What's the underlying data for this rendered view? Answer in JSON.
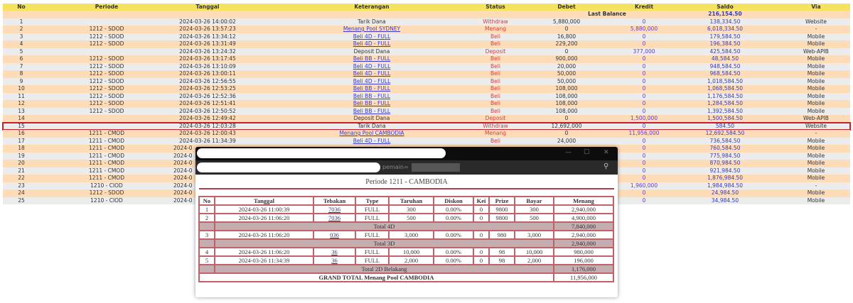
{
  "main": {
    "headers": [
      "No",
      "Periode",
      "Tanggal",
      "Keterangan",
      "Status",
      "Debet",
      "Kredit",
      "Saldo",
      "Via"
    ],
    "last_balance_label": "Last Balance",
    "last_balance": "216,154.50",
    "highlighted_row": 15,
    "rows": [
      [
        "1",
        "",
        "2024-03-26 14:00:02",
        "Tarik Dana",
        "Withdraw",
        "5,880,000",
        "0",
        "138,334.50",
        "Website"
      ],
      [
        "2",
        "1212 - SDOD",
        "2024-03-26 13:57:23",
        "Menang Pool SYDNEY",
        "Menang",
        "0",
        "5,880,000",
        "6,018,334.50",
        "-"
      ],
      [
        "3",
        "1212 - SDOD",
        "2024-03-26 13:34:12",
        "Beli 4D - FULL",
        "Beli",
        "16,800",
        "0",
        "179,584.50",
        "Mobile"
      ],
      [
        "4",
        "1212 - SDOD",
        "2024-03-26 13:31:49",
        "Beli 4D - FULL",
        "Beli",
        "229,200",
        "0",
        "196,384.50",
        "Mobile"
      ],
      [
        "5",
        "",
        "2024-03-26 13:24:32",
        "Deposit Dana",
        "Deposit",
        "0",
        "377,000",
        "425,584.50",
        "Web-APIB"
      ],
      [
        "6",
        "1212 - SDOD",
        "2024-03-26 13:17:45",
        "Beli BB - FULL",
        "Beli",
        "900,000",
        "0",
        "48,584.50",
        "Mobile"
      ],
      [
        "7",
        "1212 - SDOD",
        "2024-03-26 13:10:09",
        "Beli 4D - FULL",
        "Beli",
        "20,000",
        "0",
        "948,584.50",
        "Mobile"
      ],
      [
        "8",
        "1212 - SDOD",
        "2024-03-26 13:00:11",
        "Beli 4D - FULL",
        "Beli",
        "50,000",
        "0",
        "968,584.50",
        "Mobile"
      ],
      [
        "9",
        "1212 - SDOD",
        "2024-03-26 12:56:55",
        "Beli 4D - FULL",
        "Beli",
        "50,000",
        "0",
        "1,018,584.50",
        "Mobile"
      ],
      [
        "10",
        "1212 - SDOD",
        "2024-03-26 12:53:25",
        "Beli BB - FULL",
        "Beli",
        "108,000",
        "0",
        "1,068,584.50",
        "Mobile"
      ],
      [
        "11",
        "1212 - SDOD",
        "2024-03-26 12:52:36",
        "Beli BB - FULL",
        "Beli",
        "108,000",
        "0",
        "1,176,584.50",
        "Mobile"
      ],
      [
        "12",
        "1212 - SDOD",
        "2024-03-26 12:51:41",
        "Beli BB - FULL",
        "Beli",
        "108,000",
        "0",
        "1,284,584.50",
        "Mobile"
      ],
      [
        "13",
        "1212 - SDOD",
        "2024-03-26 12:50:52",
        "Beli BB - FULL",
        "Beli",
        "108,000",
        "0",
        "1,392,584.50",
        "Mobile"
      ],
      [
        "14",
        "",
        "2024-03-26 12:49:42",
        "Deposit Dana",
        "Deposit",
        "0",
        "1,500,000",
        "1,500,584.50",
        "Web-APIB"
      ],
      [
        "15",
        "",
        "2024-03-26 12:03:28",
        "Tarik Dana",
        "Withdraw",
        "12,692,000",
        "0",
        "584.50",
        "Website"
      ],
      [
        "16",
        "1211 - CMOD",
        "2024-03-26 12:00:43",
        "Menang Pool CAMBODIA",
        "Menang",
        "0",
        "11,956,000",
        "12,692,584.50",
        "-"
      ],
      [
        "17",
        "1211 - CMOD",
        "2024-03-26 11:34:39",
        "Beli 4D - FULL",
        "Beli",
        "24,000",
        "0",
        "736,584.50",
        "Mobile"
      ],
      [
        "18",
        "1211 - CMOD",
        "2024-0",
        "",
        "",
        "",
        "0",
        "760,584.50",
        "Mobile"
      ],
      [
        "19",
        "1211 - CMOD",
        "2024-0",
        "",
        "",
        "",
        "0",
        "775,984.50",
        "Mobile"
      ],
      [
        "20",
        "1211 - CMOD",
        "2024-0",
        "",
        "",
        "",
        "0",
        "870,984.50",
        "Mobile"
      ],
      [
        "21",
        "1211 - CMOD",
        "2024-0",
        "",
        "",
        "",
        "0",
        "921,984.50",
        "Mobile"
      ],
      [
        "22",
        "1211 - CMOD",
        "2024-0",
        "",
        "",
        "",
        "0",
        "1,876,984.50",
        "Mobile"
      ],
      [
        "23",
        "1210 - CIOD",
        "2024-0",
        "",
        "",
        "",
        "1,960,000",
        "1,984,984.50",
        "-"
      ],
      [
        "24",
        "1212 - SDOD",
        "2024-0",
        "",
        "",
        "",
        "0",
        "24,984.50",
        "Mobile"
      ],
      [
        "25",
        "1210 - CIOD",
        "2024-0",
        "",
        "",
        "",
        "0",
        "34,984.50",
        "Mobile"
      ]
    ]
  },
  "popup": {
    "address_text": "pemain=",
    "title": "Periode 1211 - CAMBODIA",
    "headers": [
      "No",
      "Tanggal",
      "Tebakan",
      "Type",
      "Taruhan",
      "Diskon",
      "Kei",
      "Prize",
      "Bayar",
      "Menang"
    ],
    "rows": [
      {
        "cells": [
          "1",
          "2024-03-26 11:00:39",
          "7036",
          "FULL",
          "300",
          "0.00%",
          "0",
          "9800",
          "300",
          "2,940,000"
        ]
      },
      {
        "cells": [
          "2",
          "2024-03-26 11:06:20",
          "7036",
          "FULL",
          "500",
          "0.00%",
          "0",
          "9800",
          "500",
          "4,900,000"
        ]
      },
      {
        "total": "Total 4D",
        "value": "7,840,000"
      },
      {
        "cells": [
          "3",
          "2024-03-26 11:06:20",
          "036",
          "FULL",
          "3,000",
          "0.00%",
          "0",
          "980",
          "3,000",
          "2,940,000"
        ]
      },
      {
        "total": "Total 3D",
        "value": "2,940,000"
      },
      {
        "cells": [
          "4",
          "2024-03-26 11:06:20",
          "36",
          "FULL",
          "10,000",
          "0.00%",
          "0",
          "98",
          "10,000",
          "980,000"
        ]
      },
      {
        "cells": [
          "5",
          "2024-03-26 11:34:39",
          "36",
          "FULL",
          "2,000",
          "0.00%",
          "0",
          "98",
          "2,000",
          "196,000"
        ]
      },
      {
        "total": "Total 2D Belakang",
        "value": "1,176,000"
      }
    ],
    "grand_total_label": "GRAND TOTAL  Menang Pool CAMBODIA",
    "grand_total": "11,956,000"
  }
}
